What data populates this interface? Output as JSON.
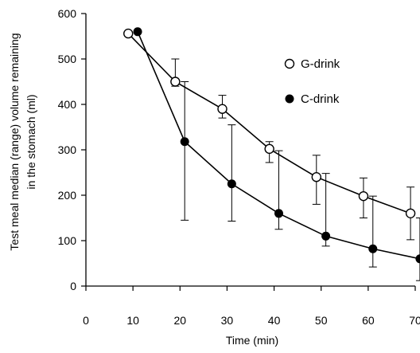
{
  "chart_data": {
    "type": "line",
    "xlabel": "Time (min)",
    "ylabel_line1": "Test meal median (range) volume remaining",
    "ylabel_line2": "in the stomach (ml)",
    "xlim": [
      0,
      70
    ],
    "ylim": [
      0,
      600
    ],
    "x_ticks": [
      "0",
      "10",
      "20",
      "30",
      "40",
      "50",
      "60",
      "70"
    ],
    "y_ticks": [
      "0",
      "100",
      "200",
      "300",
      "400",
      "500",
      "600"
    ],
    "grid": false,
    "legend_position": "top-right",
    "series": [
      {
        "name": "G-drink",
        "marker": "open-circle",
        "points": [
          {
            "x": 9,
            "y": 556,
            "lo": null,
            "hi": null
          },
          {
            "x": 19,
            "y": 450,
            "lo": 440,
            "hi": 500
          },
          {
            "x": 29,
            "y": 390,
            "lo": 370,
            "hi": 420
          },
          {
            "x": 39,
            "y": 302,
            "lo": 272,
            "hi": 318
          },
          {
            "x": 49,
            "y": 240,
            "lo": 180,
            "hi": 288
          },
          {
            "x": 59,
            "y": 198,
            "lo": 150,
            "hi": 238
          },
          {
            "x": 69,
            "y": 160,
            "lo": 102,
            "hi": 218
          }
        ]
      },
      {
        "name": "C-drink",
        "marker": "filled-circle",
        "points": [
          {
            "x": 11,
            "y": 560,
            "lo": null,
            "hi": null
          },
          {
            "x": 21,
            "y": 318,
            "lo": 145,
            "hi": 450
          },
          {
            "x": 31,
            "y": 225,
            "lo": 143,
            "hi": 355
          },
          {
            "x": 41,
            "y": 160,
            "lo": 125,
            "hi": 298
          },
          {
            "x": 51,
            "y": 110,
            "lo": 88,
            "hi": 248
          },
          {
            "x": 61,
            "y": 82,
            "lo": 42,
            "hi": 198
          },
          {
            "x": 71,
            "y": 60,
            "lo": 12,
            "hi": 150
          }
        ]
      }
    ]
  }
}
